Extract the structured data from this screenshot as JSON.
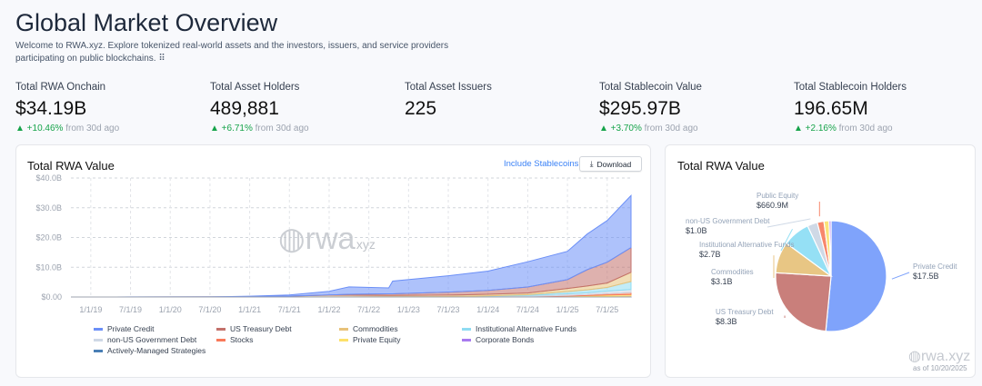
{
  "header": {
    "title": "Global Market Overview",
    "subtitle": "Welcome to RWA.xyz. Explore tokenized real-world assets and the investors, issuers, and service providers participating on public blockchains. ⠿"
  },
  "stats": [
    {
      "label": "Total RWA Onchain",
      "value": "$34.19B",
      "change": "▲ +10.46%",
      "suffix": "from 30d ago"
    },
    {
      "label": "Total Asset Holders",
      "value": "489,881",
      "change": "▲ +6.71%",
      "suffix": "from 30d ago"
    },
    {
      "label": "Total Asset Issuers",
      "value": "225"
    },
    {
      "label": "Total Stablecoin Value",
      "value": "$295.97B",
      "change": "▲ +3.70%",
      "suffix": "from 30d ago"
    },
    {
      "label": "Total Stablecoin Holders",
      "value": "196.65M",
      "change": "▲ +2.16%",
      "suffix": "from 30d ago"
    }
  ],
  "area_card": {
    "title": "Total RWA Value",
    "include_label": "Include Stablecoins",
    "download_label": "Download",
    "watermark": "rwa.xyz"
  },
  "pie_card": {
    "title": "Total RWA Value",
    "watermark": "rwa.xyz",
    "as_of": "as of 10/20/2025"
  },
  "chart_data": [
    {
      "type": "area",
      "stacked": true,
      "title": "Total RWA Value",
      "ylim": [
        0,
        40
      ],
      "yunit": "B USD",
      "yticks": [
        "$0.00",
        "$10.0B",
        "$20.0B",
        "$30.0B",
        "$40.0B"
      ],
      "yticks_values": [
        0,
        10,
        20,
        30,
        40
      ],
      "xticks": [
        "1/1/19",
        "7/1/19",
        "1/1/20",
        "7/1/20",
        "1/1/21",
        "7/1/21",
        "1/1/22",
        "7/1/22",
        "1/1/23",
        "7/1/23",
        "1/1/24",
        "7/1/24",
        "1/1/25",
        "7/1/25"
      ],
      "xticks_values": [
        2019,
        2019.5,
        2020,
        2020.5,
        2021,
        2021.5,
        2022,
        2022.5,
        2023,
        2023.5,
        2024,
        2024.5,
        2025,
        2025.5
      ],
      "xlim": [
        2018.75,
        2025.8
      ],
      "x": [
        2018.75,
        2019.5,
        2020.5,
        2021.0,
        2021.5,
        2022.0,
        2022.25,
        2022.75,
        2022.8,
        2023.5,
        2024.0,
        2024.5,
        2025.0,
        2025.25,
        2025.5,
        2025.8
      ],
      "series": [
        {
          "name": "Actively-Managed Strategies",
          "color": "#4a7fb5",
          "values": [
            0,
            0,
            0,
            0,
            0,
            0,
            0,
            0,
            0,
            0,
            0,
            0,
            0.05,
            0.05,
            0.1,
            0.1
          ]
        },
        {
          "name": "Corporate Bonds",
          "color": "#a87bef",
          "values": [
            0,
            0,
            0,
            0,
            0,
            0,
            0,
            0.05,
            0.05,
            0.05,
            0.05,
            0.1,
            0.1,
            0.15,
            0.2,
            0.25
          ]
        },
        {
          "name": "Private Equity",
          "color": "#fde16a",
          "values": [
            0,
            0,
            0,
            0,
            0,
            0,
            0,
            0,
            0,
            0,
            0.05,
            0.1,
            0.2,
            0.3,
            0.4,
            0.5
          ]
        },
        {
          "name": "Stocks",
          "color": "#f8795a",
          "values": [
            0,
            0,
            0,
            0,
            0,
            0,
            0,
            0,
            0,
            0,
            0,
            0.05,
            0.2,
            0.3,
            0.5,
            0.66
          ]
        },
        {
          "name": "non-US Government Debt",
          "color": "#cfd8e6",
          "values": [
            0,
            0,
            0,
            0,
            0,
            0,
            0,
            0,
            0,
            0.1,
            0.2,
            0.3,
            0.5,
            0.6,
            0.8,
            1.0
          ]
        },
        {
          "name": "Institutional Alternative Funds",
          "color": "#8fdcf2",
          "values": [
            0,
            0,
            0,
            0,
            0,
            0,
            0,
            0,
            0,
            0,
            0.1,
            0.2,
            0.8,
            1.0,
            1.2,
            2.7
          ]
        },
        {
          "name": "Commodities",
          "color": "#e8c27a",
          "values": [
            0,
            0,
            0.02,
            0.05,
            0.3,
            0.6,
            0.6,
            0.5,
            0.5,
            0.5,
            0.5,
            0.6,
            1.0,
            1.3,
            1.5,
            3.1
          ]
        },
        {
          "name": "US Treasury Debt",
          "color": "#c3716b",
          "values": [
            0,
            0,
            0,
            0,
            0,
            0.1,
            0.3,
            0.5,
            0.5,
            1.0,
            1.3,
            2.0,
            3.0,
            5.5,
            7.0,
            8.3
          ]
        },
        {
          "name": "Private Credit",
          "color": "#6b8ff7",
          "values": [
            0,
            0.02,
            0.05,
            0.2,
            0.4,
            1.2,
            2.5,
            2.0,
            4.3,
            5.5,
            6.5,
            8.5,
            9.5,
            12.0,
            14.0,
            17.5
          ]
        }
      ],
      "legend": [
        "Private Credit",
        "US Treasury Debt",
        "Commodities",
        "Institutional Alternative Funds",
        "non-US Government Debt",
        "Stocks",
        "Private Equity",
        "Corporate Bonds",
        "Actively-Managed Strategies"
      ],
      "legend_colors": [
        "#6b8ff7",
        "#c3716b",
        "#e8c27a",
        "#8fdcf2",
        "#cfd8e6",
        "#f8795a",
        "#fde16a",
        "#a87bef",
        "#4a7fb5"
      ]
    },
    {
      "type": "pie",
      "title": "Total RWA Value",
      "slices": [
        {
          "name": "Private Credit",
          "value": 17.5,
          "label": "$17.5B",
          "color": "#7fa3fb"
        },
        {
          "name": "US Treasury Debt",
          "value": 8.3,
          "label": "$8.3B",
          "color": "#c97f7b"
        },
        {
          "name": "Commodities",
          "value": 3.1,
          "label": "$3.1B",
          "color": "#e8c684"
        },
        {
          "name": "Institutional Alternative Funds",
          "value": 2.7,
          "label": "$2.7B",
          "color": "#95e0f5"
        },
        {
          "name": "non-US Government Debt",
          "value": 1.0,
          "label": "$1.0B",
          "color": "#cfd9e6"
        },
        {
          "name": "Public Equity",
          "value": 0.661,
          "label": "$660.9M",
          "color": "#f7876b"
        },
        {
          "name": "Private Equity",
          "value": 0.5,
          "color": "#fbe37a"
        },
        {
          "name": "Corporate Bonds",
          "value": 0.2,
          "color": "#b487f0"
        }
      ]
    }
  ]
}
